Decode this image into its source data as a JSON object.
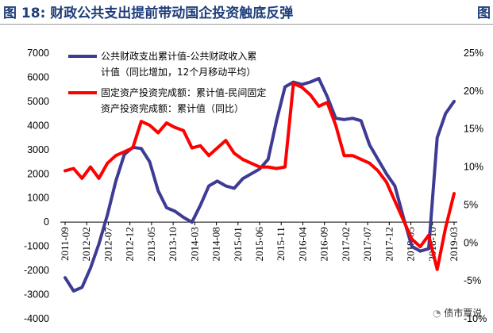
{
  "header": {
    "title": "图 18:  财政公共支出提前带动国企投资触底反弹",
    "title_next_page": "图"
  },
  "watermark": {
    "text": "债市覃说"
  },
  "chart_data": {
    "type": "line",
    "x": [
      "2011-09",
      "2011-11",
      "2012-01",
      "2012-03",
      "2012-05",
      "2012-07",
      "2012-09",
      "2012-11",
      "2013-01",
      "2013-03",
      "2013-05",
      "2013-07",
      "2013-09",
      "2013-11",
      "2014-01",
      "2014-03",
      "2014-05",
      "2014-07",
      "2014-09",
      "2014-11",
      "2015-01",
      "2015-03",
      "2015-05",
      "2015-07",
      "2015-09",
      "2015-11",
      "2016-01",
      "2016-03",
      "2016-05",
      "2016-07",
      "2016-09",
      "2016-11",
      "2017-01",
      "2017-03",
      "2017-05",
      "2017-07",
      "2017-09",
      "2017-11",
      "2018-01",
      "2018-03",
      "2018-05",
      "2018-07",
      "2018-09",
      "2018-11",
      "2019-01",
      "2019-03",
      "2019-05"
    ],
    "x_tick_labels": [
      "2011-09",
      "2012-02",
      "2012-07",
      "2012-12",
      "2013-05",
      "2013-10",
      "2014-03",
      "2014-08",
      "2015-01",
      "2015-06",
      "2015-11",
      "2016-04",
      "2016-09",
      "2017-02",
      "2017-07",
      "2017-12",
      "2018-05",
      "2018-10",
      "2019-03"
    ],
    "y_left": {
      "ticks": [
        -4000,
        -3000,
        -2000,
        -1000,
        0,
        1000,
        2000,
        3000,
        4000,
        5000,
        6000,
        7000
      ],
      "ylim": [
        -4000,
        7000
      ]
    },
    "y_right": {
      "ticks": [
        "-10%",
        "-5%",
        "0%",
        "5%",
        "10%",
        "15%",
        "20%",
        "25%"
      ],
      "ylim": [
        -10,
        25
      ]
    },
    "series": [
      {
        "name": "公共财政支出累计值-公共财政收入累计值（同比增加，12个月移动平均）",
        "axis": "left",
        "color": "#3d3b94",
        "values": [
          -2300,
          -2850,
          -2700,
          -1900,
          -900,
          300,
          1700,
          2800,
          3100,
          3050,
          2500,
          1300,
          600,
          450,
          200,
          0,
          700,
          1500,
          1700,
          1500,
          1400,
          1800,
          2000,
          2200,
          2600,
          4200,
          5600,
          5800,
          5700,
          5800,
          5950,
          5200,
          4300,
          4250,
          4300,
          4200,
          3200,
          2600,
          2000,
          1500,
          200,
          -1000,
          -1200,
          -1100,
          3500,
          4500,
          5000
        ]
      },
      {
        "name": "固定资产投资完成额：累计值-民间固定资产投资完成额：累计值（同比）",
        "axis": "right",
        "color": "#ff0000",
        "values": [
          9.5,
          9.8,
          8.5,
          10,
          8.5,
          10.5,
          11.5,
          12,
          12.5,
          16,
          15.5,
          14.5,
          15.8,
          15.2,
          14.8,
          12.5,
          12.8,
          11.5,
          12.5,
          13.5,
          11.8,
          11,
          10.5,
          10,
          10,
          9.8,
          10,
          21,
          20.5,
          19.5,
          18,
          18.5,
          15.5,
          11.5,
          11.5,
          11,
          10.5,
          9.5,
          8,
          5.5,
          3,
          0.5,
          -0.5,
          1,
          -3.5,
          2,
          6.5
        ]
      }
    ]
  }
}
